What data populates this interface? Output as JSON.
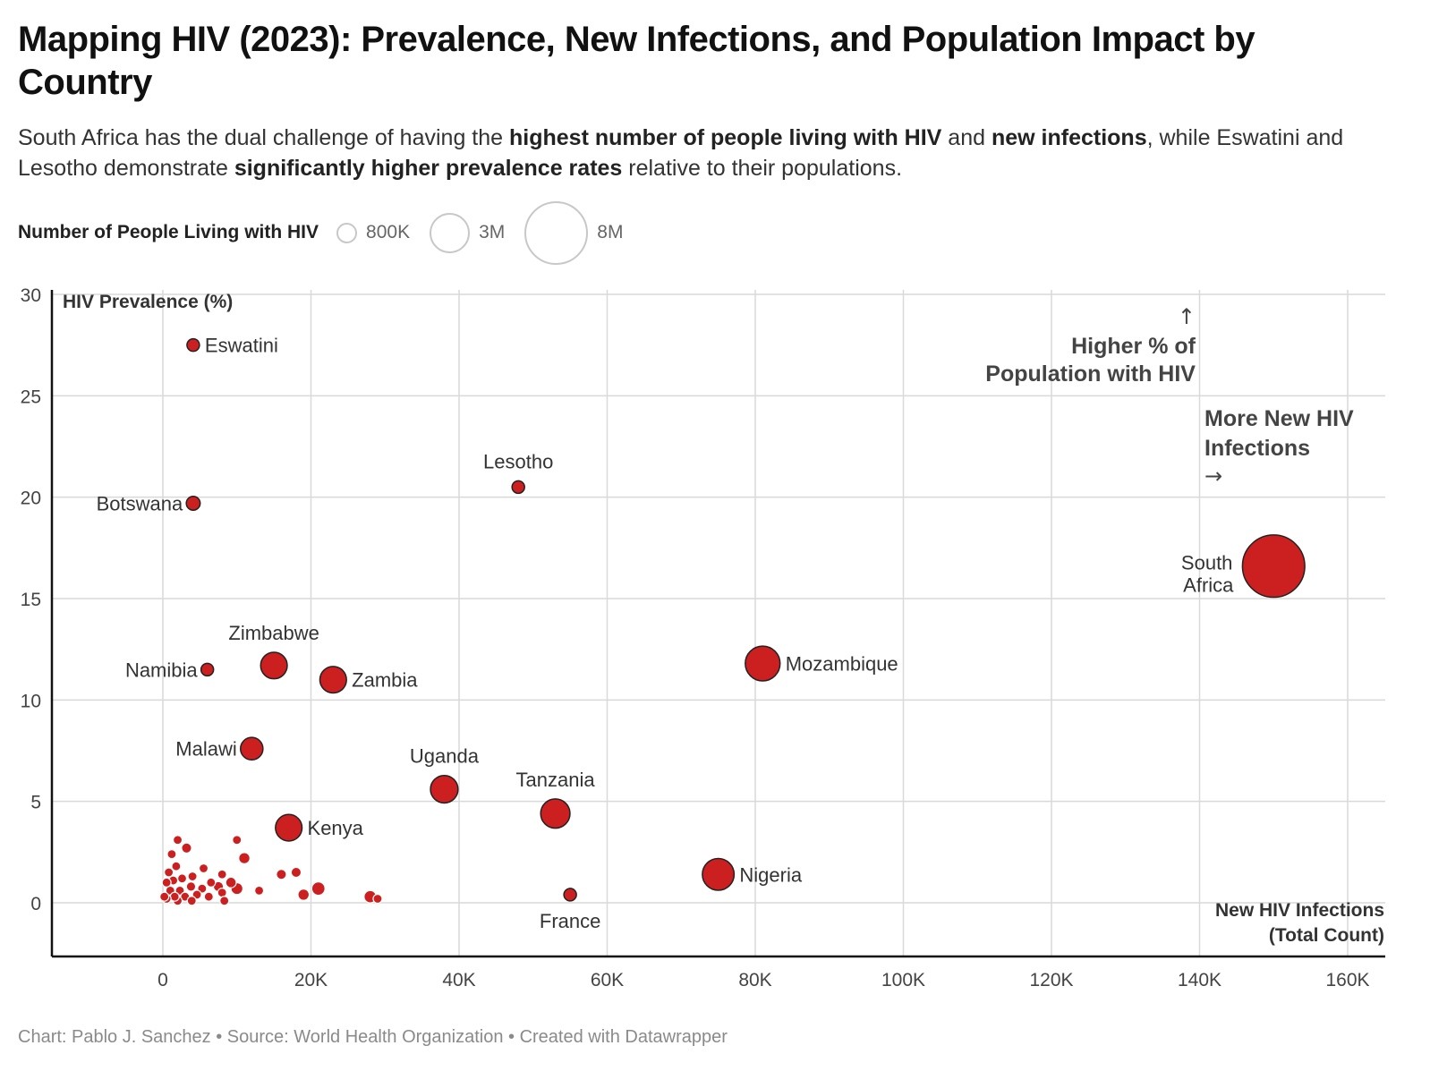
{
  "title": "Mapping HIV (2023): Prevalence, New Infections, and Population Impact by Country",
  "subtitle": {
    "parts": [
      {
        "text": "South Africa has the dual challenge of having the ",
        "bold": false
      },
      {
        "text": "highest number of people living with HIV",
        "bold": true
      },
      {
        "text": " and ",
        "bold": false
      },
      {
        "text": "new infections",
        "bold": true
      },
      {
        "text": ", while Eswatini and Lesotho demonstrate ",
        "bold": false
      },
      {
        "text": "significantly higher prevalence rates",
        "bold": true
      },
      {
        "text": " relative to their populations.",
        "bold": false
      }
    ]
  },
  "legend": {
    "title": "Number of People Living with HIV",
    "items": [
      {
        "label": "800K",
        "value": 800000
      },
      {
        "label": "3M",
        "value": 3000000
      },
      {
        "label": "8M",
        "value": 8000000
      }
    ]
  },
  "annotations": {
    "y_arrow": "↑",
    "y_note_line1": "Higher % of",
    "y_note_line2": "Population with HIV",
    "x_note_line1": "More New HIV",
    "x_note_line2": "Infections",
    "x_arrow": "→"
  },
  "footer": "Chart: Pablo J. Sanchez • Source: World Health Organization • Created with Datawrapper",
  "colors": {
    "bubble": "#cc1f1f",
    "bubble_stroke_labeled": "#222222",
    "bubble_stroke_unlabeled": "#ffffff",
    "grid": "#d9d9d9",
    "axis": "#111111",
    "label": "#333333",
    "annotation": "#444444"
  },
  "chart_data": {
    "type": "scatter",
    "title": "Mapping HIV (2023): Prevalence, New Infections, and Population Impact by Country",
    "xlabel_line1": "New HIV Infections",
    "xlabel_line2": "(Total Count)",
    "ylabel": "HIV Prevalence (%)",
    "size_label": "Number of People Living with HIV",
    "xlim": [
      -15000,
      165000
    ],
    "ylim": [
      -2.6,
      30
    ],
    "x_ticks": [
      0,
      20000,
      40000,
      60000,
      80000,
      100000,
      120000,
      140000,
      160000
    ],
    "x_tick_labels": [
      "0",
      "20K",
      "40K",
      "60K",
      "80K",
      "100K",
      "120K",
      "140K",
      "160K"
    ],
    "y_ticks": [
      0,
      5,
      10,
      15,
      20,
      25,
      30
    ],
    "y_tick_labels": [
      "0",
      "5",
      "10",
      "15",
      "20",
      "25",
      "30"
    ],
    "grid": true,
    "labeled_points": [
      {
        "name": "Eswatini",
        "x": 4100,
        "y": 27.5,
        "size": 220000,
        "label_pos": "right"
      },
      {
        "name": "Botswana",
        "x": 4100,
        "y": 19.7,
        "size": 380000,
        "label_pos": "left"
      },
      {
        "name": "Lesotho",
        "x": 48000,
        "y": 20.5,
        "size": 290000,
        "label_pos": "top"
      },
      {
        "name": "South Africa",
        "x": 150000,
        "y": 16.6,
        "size": 7700000,
        "label_pos": "left-2line"
      },
      {
        "name": "Zimbabwe",
        "x": 15000,
        "y": 11.7,
        "size": 1400000,
        "label_pos": "top"
      },
      {
        "name": "Namibia",
        "x": 6000,
        "y": 11.5,
        "size": 230000,
        "label_pos": "left"
      },
      {
        "name": "Zambia",
        "x": 23000,
        "y": 11.0,
        "size": 1400000,
        "label_pos": "right"
      },
      {
        "name": "Mozambique",
        "x": 81000,
        "y": 11.8,
        "size": 2400000,
        "label_pos": "right"
      },
      {
        "name": "Malawi",
        "x": 12000,
        "y": 7.6,
        "size": 1000000,
        "label_pos": "left"
      },
      {
        "name": "Uganda",
        "x": 38000,
        "y": 5.6,
        "size": 1500000,
        "label_pos": "top"
      },
      {
        "name": "Tanzania",
        "x": 53000,
        "y": 4.4,
        "size": 1700000,
        "label_pos": "top"
      },
      {
        "name": "Kenya",
        "x": 17000,
        "y": 3.7,
        "size": 1400000,
        "label_pos": "right"
      },
      {
        "name": "Nigeria",
        "x": 75000,
        "y": 1.4,
        "size": 2000000,
        "label_pos": "right"
      },
      {
        "name": "France",
        "x": 55000,
        "y": 0.4,
        "size": 200000,
        "label_pos": "bottom"
      }
    ],
    "unlabeled_points": [
      {
        "x": 2000,
        "y": 3.1,
        "size": 90000
      },
      {
        "x": 3200,
        "y": 2.7,
        "size": 200000
      },
      {
        "x": 1200,
        "y": 2.4,
        "size": 70000
      },
      {
        "x": 10000,
        "y": 3.1,
        "size": 80000
      },
      {
        "x": 11000,
        "y": 2.2,
        "size": 250000
      },
      {
        "x": 1800,
        "y": 1.8,
        "size": 90000
      },
      {
        "x": 5500,
        "y": 1.7,
        "size": 120000
      },
      {
        "x": 800,
        "y": 1.5,
        "size": 120000
      },
      {
        "x": 16000,
        "y": 1.4,
        "size": 200000
      },
      {
        "x": 18000,
        "y": 1.5,
        "size": 200000
      },
      {
        "x": 4000,
        "y": 1.3,
        "size": 160000
      },
      {
        "x": 8000,
        "y": 1.4,
        "size": 120000
      },
      {
        "x": 2600,
        "y": 1.2,
        "size": 130000
      },
      {
        "x": 1400,
        "y": 1.1,
        "size": 100000
      },
      {
        "x": 6500,
        "y": 1.0,
        "size": 150000
      },
      {
        "x": 9200,
        "y": 1.0,
        "size": 220000
      },
      {
        "x": 500,
        "y": 1.0,
        "size": 60000
      },
      {
        "x": 3800,
        "y": 0.8,
        "size": 170000
      },
      {
        "x": 7500,
        "y": 0.8,
        "size": 200000
      },
      {
        "x": 10000,
        "y": 0.7,
        "size": 280000
      },
      {
        "x": 5300,
        "y": 0.7,
        "size": 140000
      },
      {
        "x": 2300,
        "y": 0.6,
        "size": 110000
      },
      {
        "x": 1000,
        "y": 0.6,
        "size": 80000
      },
      {
        "x": 13000,
        "y": 0.6,
        "size": 150000
      },
      {
        "x": 21000,
        "y": 0.7,
        "size": 350000
      },
      {
        "x": 19000,
        "y": 0.4,
        "size": 250000
      },
      {
        "x": 28000,
        "y": 0.3,
        "size": 300000
      },
      {
        "x": 29000,
        "y": 0.2,
        "size": 150000
      },
      {
        "x": 8000,
        "y": 0.5,
        "size": 140000
      },
      {
        "x": 4600,
        "y": 0.4,
        "size": 130000
      },
      {
        "x": 6200,
        "y": 0.3,
        "size": 120000
      },
      {
        "x": 3000,
        "y": 0.3,
        "size": 90000
      },
      {
        "x": 1600,
        "y": 0.3,
        "size": 70000
      },
      {
        "x": 500,
        "y": 0.2,
        "size": 60000
      },
      {
        "x": 8300,
        "y": 0.1,
        "size": 100000
      },
      {
        "x": 2000,
        "y": 0.1,
        "size": 90000
      },
      {
        "x": 3900,
        "y": 0.1,
        "size": 90000
      },
      {
        "x": 200,
        "y": 0.3,
        "size": 50000
      }
    ]
  }
}
